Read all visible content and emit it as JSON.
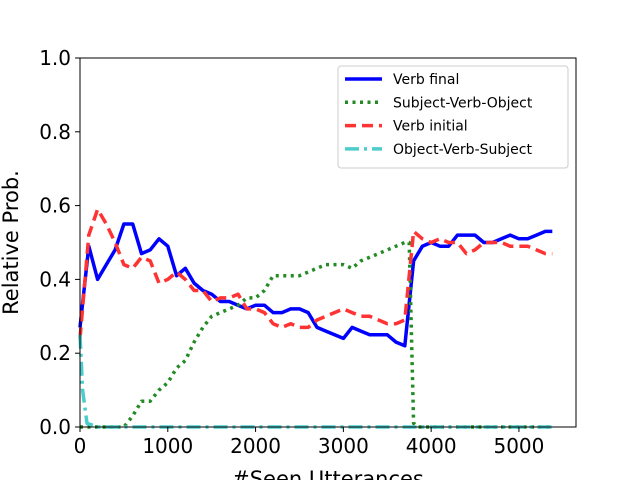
{
  "chart_data": {
    "type": "line",
    "title": "",
    "xlabel": "#Seen Utterances",
    "ylabel": "Relative Prob.",
    "xlim": [
      0,
      5650
    ],
    "ylim": [
      0,
      1.0
    ],
    "xticks": [
      0,
      1000,
      2000,
      3000,
      4000,
      5000
    ],
    "yticks": [
      0.0,
      0.2,
      0.4,
      0.6,
      0.8,
      1.0
    ],
    "xtick_labels": [
      "0",
      "1000",
      "2000",
      "3000",
      "4000",
      "5000"
    ],
    "ytick_labels": [
      "0.0",
      "0.2",
      "0.4",
      "0.6",
      "0.8",
      "1.0"
    ],
    "grid": false,
    "legend_position": "top-right",
    "series": [
      {
        "name": "Verb final",
        "color": "#0000ff",
        "style": "solid",
        "points": [
          [
            0,
            0.27
          ],
          [
            100,
            0.49
          ],
          [
            200,
            0.4
          ],
          [
            300,
            0.44
          ],
          [
            400,
            0.48
          ],
          [
            500,
            0.55
          ],
          [
            600,
            0.55
          ],
          [
            700,
            0.47
          ],
          [
            800,
            0.48
          ],
          [
            900,
            0.51
          ],
          [
            1000,
            0.49
          ],
          [
            1100,
            0.41
          ],
          [
            1200,
            0.43
          ],
          [
            1300,
            0.39
          ],
          [
            1400,
            0.37
          ],
          [
            1500,
            0.36
          ],
          [
            1600,
            0.34
          ],
          [
            1700,
            0.34
          ],
          [
            1800,
            0.33
          ],
          [
            1900,
            0.32
          ],
          [
            2000,
            0.33
          ],
          [
            2100,
            0.33
          ],
          [
            2200,
            0.31
          ],
          [
            2300,
            0.31
          ],
          [
            2400,
            0.32
          ],
          [
            2500,
            0.32
          ],
          [
            2600,
            0.31
          ],
          [
            2700,
            0.27
          ],
          [
            2800,
            0.26
          ],
          [
            2900,
            0.25
          ],
          [
            3000,
            0.24
          ],
          [
            3100,
            0.27
          ],
          [
            3200,
            0.26
          ],
          [
            3300,
            0.25
          ],
          [
            3400,
            0.25
          ],
          [
            3500,
            0.25
          ],
          [
            3600,
            0.23
          ],
          [
            3700,
            0.22
          ],
          [
            3800,
            0.45
          ],
          [
            3900,
            0.49
          ],
          [
            4000,
            0.5
          ],
          [
            4100,
            0.49
          ],
          [
            4200,
            0.49
          ],
          [
            4300,
            0.52
          ],
          [
            4400,
            0.52
          ],
          [
            4500,
            0.52
          ],
          [
            4600,
            0.5
          ],
          [
            4700,
            0.5
          ],
          [
            4800,
            0.51
          ],
          [
            4900,
            0.52
          ],
          [
            5000,
            0.51
          ],
          [
            5100,
            0.51
          ],
          [
            5200,
            0.52
          ],
          [
            5300,
            0.53
          ],
          [
            5380,
            0.53
          ]
        ]
      },
      {
        "name": "Subject-Verb-Object",
        "color": "#228b22",
        "style": "dotted",
        "points": [
          [
            0,
            0.0
          ],
          [
            500,
            0.0
          ],
          [
            600,
            0.03
          ],
          [
            700,
            0.07
          ],
          [
            800,
            0.07
          ],
          [
            900,
            0.1
          ],
          [
            1000,
            0.12
          ],
          [
            1100,
            0.16
          ],
          [
            1200,
            0.18
          ],
          [
            1300,
            0.23
          ],
          [
            1400,
            0.27
          ],
          [
            1500,
            0.3
          ],
          [
            1600,
            0.31
          ],
          [
            1700,
            0.32
          ],
          [
            1800,
            0.33
          ],
          [
            1900,
            0.35
          ],
          [
            2000,
            0.35
          ],
          [
            2100,
            0.37
          ],
          [
            2200,
            0.41
          ],
          [
            2300,
            0.41
          ],
          [
            2400,
            0.41
          ],
          [
            2500,
            0.41
          ],
          [
            2600,
            0.42
          ],
          [
            2700,
            0.43
          ],
          [
            2800,
            0.44
          ],
          [
            2900,
            0.44
          ],
          [
            3000,
            0.44
          ],
          [
            3100,
            0.43
          ],
          [
            3200,
            0.45
          ],
          [
            3300,
            0.46
          ],
          [
            3400,
            0.47
          ],
          [
            3500,
            0.48
          ],
          [
            3600,
            0.49
          ],
          [
            3700,
            0.5
          ],
          [
            3750,
            0.5
          ],
          [
            3800,
            0.01
          ],
          [
            3850,
            0.0
          ],
          [
            5380,
            0.0
          ]
        ]
      },
      {
        "name": "Verb initial",
        "color": "#ff3333",
        "style": "dashed",
        "points": [
          [
            0,
            0.24
          ],
          [
            100,
            0.52
          ],
          [
            200,
            0.59
          ],
          [
            300,
            0.55
          ],
          [
            400,
            0.5
          ],
          [
            500,
            0.44
          ],
          [
            600,
            0.43
          ],
          [
            700,
            0.46
          ],
          [
            800,
            0.45
          ],
          [
            900,
            0.39
          ],
          [
            1000,
            0.4
          ],
          [
            1100,
            0.42
          ],
          [
            1200,
            0.4
          ],
          [
            1300,
            0.37
          ],
          [
            1400,
            0.37
          ],
          [
            1500,
            0.34
          ],
          [
            1600,
            0.35
          ],
          [
            1700,
            0.35
          ],
          [
            1800,
            0.36
          ],
          [
            1900,
            0.32
          ],
          [
            2000,
            0.32
          ],
          [
            2100,
            0.31
          ],
          [
            2200,
            0.28
          ],
          [
            2300,
            0.27
          ],
          [
            2400,
            0.28
          ],
          [
            2500,
            0.27
          ],
          [
            2600,
            0.27
          ],
          [
            2700,
            0.29
          ],
          [
            2800,
            0.3
          ],
          [
            2900,
            0.31
          ],
          [
            3000,
            0.32
          ],
          [
            3100,
            0.31
          ],
          [
            3200,
            0.3
          ],
          [
            3300,
            0.3
          ],
          [
            3400,
            0.29
          ],
          [
            3500,
            0.28
          ],
          [
            3600,
            0.28
          ],
          [
            3700,
            0.29
          ],
          [
            3800,
            0.53
          ],
          [
            3900,
            0.51
          ],
          [
            4000,
            0.5
          ],
          [
            4100,
            0.51
          ],
          [
            4200,
            0.5
          ],
          [
            4300,
            0.5
          ],
          [
            4400,
            0.47
          ],
          [
            4500,
            0.48
          ],
          [
            4600,
            0.5
          ],
          [
            4700,
            0.5
          ],
          [
            4800,
            0.5
          ],
          [
            4900,
            0.49
          ],
          [
            5000,
            0.49
          ],
          [
            5100,
            0.49
          ],
          [
            5200,
            0.48
          ],
          [
            5300,
            0.47
          ],
          [
            5380,
            0.47
          ]
        ]
      },
      {
        "name": "Object-Verb-Subject",
        "color": "#4dcccc",
        "style": "dashdot",
        "points": [
          [
            0,
            0.25
          ],
          [
            30,
            0.1
          ],
          [
            80,
            0.01
          ],
          [
            200,
            0.0
          ],
          [
            5380,
            0.0
          ]
        ]
      }
    ]
  }
}
